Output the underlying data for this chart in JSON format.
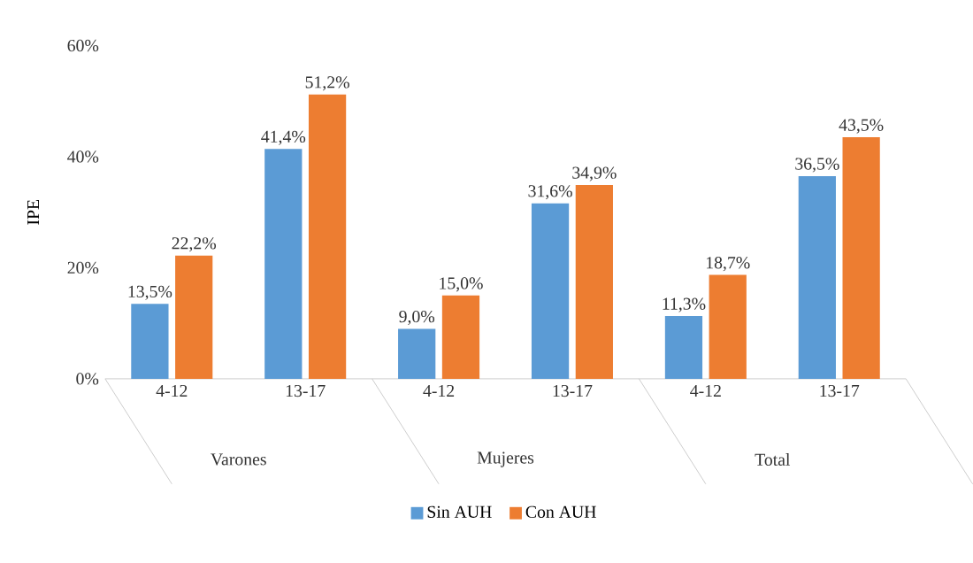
{
  "chart_data": {
    "type": "bar",
    "ylabel": "IPE",
    "categories": [
      "4-12",
      "13-17",
      "4-12",
      "13-17",
      "4-12",
      "13-17"
    ],
    "annotations": [
      "Varones",
      "Mujeres",
      "Total"
    ],
    "series": [
      {
        "name": "Sin AUH",
        "color": "#5b9bd5",
        "values": [
          13.5,
          41.4,
          9.0,
          31.6,
          11.3,
          36.5
        ],
        "value_labels": [
          "13,5%",
          "41,4%",
          "9,0%",
          "31,6%",
          "11,3%",
          "36,5%"
        ]
      },
      {
        "name": "Con AUH",
        "color": "#ed7d31",
        "values": [
          22.2,
          51.2,
          15.0,
          34.9,
          18.7,
          43.5
        ],
        "value_labels": [
          "22,2%",
          "51,2%",
          "15,0%",
          "34,9%",
          "18,7%",
          "43,5%"
        ]
      }
    ],
    "ylim": [
      0,
      60
    ],
    "yticks": [
      {
        "value": 0,
        "label": "0%"
      },
      {
        "value": 20,
        "label": "20%"
      },
      {
        "value": 40,
        "label": "40%"
      },
      {
        "value": 60,
        "label": "60%"
      }
    ],
    "grid": false,
    "legend": "bottom"
  }
}
